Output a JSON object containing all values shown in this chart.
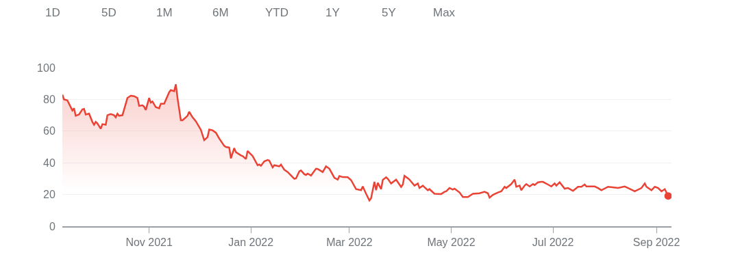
{
  "chart_data": {
    "type": "area",
    "annotations": [
      "1D",
      "5D",
      "1M",
      "6M",
      "YTD",
      "1Y",
      "5Y",
      "Max"
    ],
    "x": [
      "2021-09-10",
      "2021-09-11",
      "2021-09-13",
      "2021-09-16",
      "2021-09-17",
      "2021-09-18",
      "2021-09-20",
      "2021-09-22",
      "2021-09-23",
      "2021-09-24",
      "2021-09-26",
      "2021-09-28",
      "2021-09-29",
      "2021-09-30",
      "2021-10-01",
      "2021-10-03",
      "2021-10-04",
      "2021-10-06",
      "2021-10-07",
      "2021-10-09",
      "2021-10-11",
      "2021-10-12",
      "2021-10-13",
      "2021-10-14",
      "2021-10-16",
      "2021-10-19",
      "2021-10-21",
      "2021-10-23",
      "2021-10-25",
      "2021-10-26",
      "2021-10-28",
      "2021-10-29",
      "2021-10-30",
      "2021-11-01",
      "2021-11-02",
      "2021-11-03",
      "2021-11-05",
      "2021-11-07",
      "2021-11-08",
      "2021-11-10",
      "2021-11-13",
      "2021-11-14",
      "2021-11-16",
      "2021-11-17",
      "2021-11-18",
      "2021-11-20",
      "2021-11-21",
      "2021-11-23",
      "2021-11-24",
      "2021-11-25",
      "2021-11-27",
      "2021-11-29",
      "2021-12-02",
      "2021-12-04",
      "2021-12-06",
      "2021-12-07",
      "2021-12-09",
      "2021-12-11",
      "2021-12-13",
      "2021-12-16",
      "2021-12-17",
      "2021-12-19",
      "2021-12-20",
      "2021-12-22",
      "2021-12-23",
      "2021-12-26",
      "2021-12-27",
      "2021-12-29",
      "2021-12-30",
      "2021-12-31",
      "2022-01-02",
      "2022-01-05",
      "2022-01-06",
      "2022-01-07",
      "2022-01-09",
      "2022-01-11",
      "2022-01-12",
      "2022-01-14",
      "2022-01-15",
      "2022-01-18",
      "2022-01-19",
      "2022-01-21",
      "2022-01-23",
      "2022-01-27",
      "2022-01-28",
      "2022-01-30",
      "2022-01-31",
      "2022-02-02",
      "2022-02-03",
      "2022-02-04",
      "2022-02-06",
      "2022-02-09",
      "2022-02-10",
      "2022-02-13",
      "2022-02-15",
      "2022-02-17",
      "2022-02-20",
      "2022-02-22",
      "2022-02-23",
      "2022-02-25",
      "2022-02-28",
      "2022-03-02",
      "2022-03-05",
      "2022-03-08",
      "2022-03-09",
      "2022-03-11",
      "2022-03-13",
      "2022-03-14",
      "2022-03-16",
      "2022-03-17",
      "2022-03-18",
      "2022-03-20",
      "2022-03-21",
      "2022-03-23",
      "2022-03-24",
      "2022-03-26",
      "2022-03-29",
      "2022-04-01",
      "2022-04-02",
      "2022-04-03",
      "2022-04-05",
      "2022-04-06",
      "2022-04-09",
      "2022-04-11",
      "2022-04-12",
      "2022-04-14",
      "2022-04-17",
      "2022-04-18",
      "2022-04-21",
      "2022-04-25",
      "2022-04-27",
      "2022-04-28",
      "2022-04-30",
      "2022-05-02",
      "2022-05-03",
      "2022-05-06",
      "2022-05-08",
      "2022-05-11",
      "2022-05-14",
      "2022-05-18",
      "2022-05-21",
      "2022-05-23",
      "2022-05-24",
      "2022-05-26",
      "2022-05-29",
      "2022-05-31",
      "2022-06-02",
      "2022-06-03",
      "2022-06-06",
      "2022-06-08",
      "2022-06-09",
      "2022-06-11",
      "2022-06-12",
      "2022-06-14",
      "2022-06-15",
      "2022-06-17",
      "2022-06-19",
      "2022-06-20",
      "2022-06-22",
      "2022-06-24",
      "2022-06-25",
      "2022-06-28",
      "2022-06-30",
      "2022-07-02",
      "2022-07-03",
      "2022-07-05",
      "2022-07-08",
      "2022-07-10",
      "2022-07-13",
      "2022-07-16",
      "2022-07-18",
      "2022-07-20",
      "2022-07-21",
      "2022-07-23",
      "2022-07-26",
      "2022-07-28",
      "2022-07-30",
      "2022-08-03",
      "2022-08-09",
      "2022-08-13",
      "2022-08-15",
      "2022-08-19",
      "2022-08-23",
      "2022-08-25",
      "2022-08-26",
      "2022-08-29",
      "2022-08-31",
      "2022-09-02",
      "2022-09-04",
      "2022-09-06",
      "2022-09-08"
    ],
    "series": [
      {
        "color": "#ea4335",
        "values": [
          83,
          80,
          79.4,
          73,
          74.4,
          69.7,
          70.5,
          73.7,
          74,
          70.5,
          71,
          65.8,
          64,
          65.8,
          64.8,
          61.5,
          64.4,
          64,
          70,
          70.8,
          70,
          68.7,
          71,
          69.7,
          70,
          80.9,
          82.3,
          82,
          80.9,
          75.9,
          76.3,
          75.4,
          73.3,
          80.9,
          78,
          78.7,
          75.1,
          74.4,
          77.3,
          77.3,
          84.5,
          85.9,
          85.2,
          89.5,
          80.9,
          66.8,
          66.8,
          68.7,
          69.7,
          72.2,
          68.7,
          66.2,
          60.8,
          54.3,
          56.2,
          61,
          60.5,
          59,
          55.3,
          50.7,
          50,
          49.6,
          42.8,
          49.3,
          46.7,
          44.7,
          44.3,
          42.4,
          47.5,
          46.4,
          44.3,
          38.5,
          38.9,
          38.1,
          40.9,
          41.8,
          41.4,
          37.1,
          38.5,
          37.8,
          38.9,
          35.6,
          34.2,
          29.9,
          30.2,
          34.6,
          35.2,
          32.8,
          32.3,
          33.2,
          32,
          36.3,
          36.1,
          34.2,
          37.8,
          36.3,
          30.6,
          29.4,
          31.7,
          31,
          30.9,
          29.1,
          23.4,
          22.7,
          25.1,
          20.5,
          16.2,
          17.7,
          28,
          22.7,
          27.4,
          23.4,
          29.2,
          30.9,
          29.9,
          27,
          29.4,
          24.8,
          26.3,
          31.8,
          30.3,
          29.4,
          25.6,
          27,
          24.1,
          25.6,
          22.7,
          23.4,
          20.5,
          20.3,
          21.7,
          22,
          24.1,
          23.1,
          23.7,
          21.3,
          18.4,
          18.4,
          20.5,
          20.8,
          21.7,
          20.8,
          18,
          19.8,
          21.3,
          22,
          24.9,
          24.1,
          26.6,
          29.4,
          24.9,
          25.6,
          22.7,
          25.6,
          26.6,
          25.1,
          26.6,
          26,
          27.7,
          28,
          28,
          26.3,
          25.1,
          27,
          25.6,
          27.7,
          23.7,
          24.1,
          22.3,
          24.9,
          24.9,
          26.3,
          25.1,
          25.1,
          25.1,
          24.1,
          22.7,
          24.9,
          24.1,
          25.1,
          24.1,
          22,
          24.1,
          27,
          24.9,
          22.7,
          24.9,
          24.1,
          22,
          23.4,
          19.1
        ]
      }
    ],
    "xlim": [
      "2021-09-10",
      "2022-09-10"
    ],
    "xticks": [
      {
        "value": "2021-11-01",
        "label": "Nov 2021"
      },
      {
        "value": "2022-01-01",
        "label": "Jan 2022"
      },
      {
        "value": "2022-03-01",
        "label": "Mar 2022"
      },
      {
        "value": "2022-05-01",
        "label": "May 2022"
      },
      {
        "value": "2022-07-01",
        "label": "Jul 2022"
      },
      {
        "value": "2022-09-01",
        "label": "Sep 2022"
      }
    ],
    "ylim": [
      0,
      100
    ],
    "yticks": [
      0,
      20,
      40,
      60,
      80,
      100
    ],
    "grid": "y",
    "marker": "none",
    "line_style": "solid"
  }
}
